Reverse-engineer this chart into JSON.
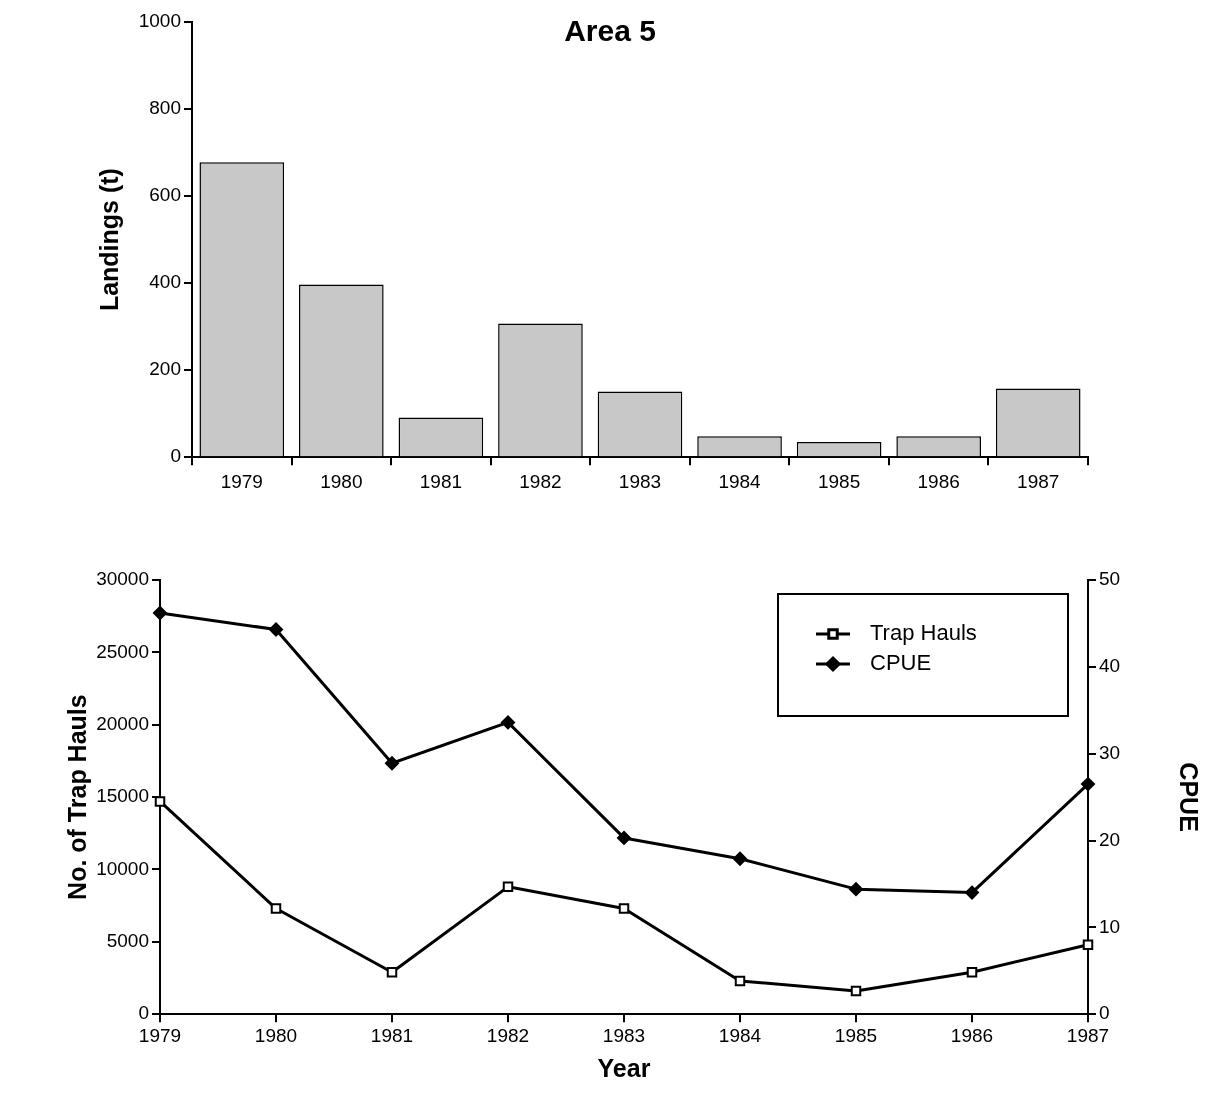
{
  "chart_data": [
    {
      "type": "bar",
      "title": "Area 5",
      "ylabel": "Landings (t)",
      "categories": [
        "1979",
        "1980",
        "1981",
        "1982",
        "1983",
        "1984",
        "1985",
        "1986",
        "1987"
      ],
      "values": [
        678,
        397,
        91,
        307,
        151,
        48,
        35,
        48,
        158
      ],
      "color": "#c8c8c8",
      "ylim": [
        0,
        1000
      ],
      "yticks": [
        0,
        200,
        400,
        600,
        800,
        1000
      ],
      "grid": false,
      "legend": false
    },
    {
      "type": "line",
      "xlabel": "Year",
      "ylabel": "No. of Trap Hauls",
      "y2label": "CPUE",
      "x": [
        1979,
        1980,
        1981,
        1982,
        1983,
        1984,
        1985,
        1986,
        1987
      ],
      "series": [
        {
          "name": "Trap Hauls",
          "color": "#000000",
          "marker": "square",
          "values": [
            14700,
            7300,
            2900,
            8800,
            7300,
            2300,
            1600,
            2900,
            4800
          ]
        },
        {
          "name": "CPUE",
          "color": "#000000",
          "marker": "diamond",
          "axis": "y2",
          "values": [
            46.2,
            44.3,
            28.9,
            33.6,
            20.3,
            17.9,
            14.4,
            14.0,
            26.5
          ]
        }
      ],
      "xlim": [
        1979,
        1987
      ],
      "xticks": [
        1979,
        1980,
        1981,
        1982,
        1983,
        1984,
        1985,
        1986,
        1987
      ],
      "ylim": [
        0,
        30000
      ],
      "yticks": [
        0,
        5000,
        10000,
        15000,
        20000,
        25000,
        30000
      ],
      "y2lim": [
        0,
        50
      ],
      "y2ticks": [
        0,
        10,
        20,
        30,
        40,
        50
      ],
      "grid": false,
      "legend": "top right",
      "line_style": "solid"
    }
  ]
}
